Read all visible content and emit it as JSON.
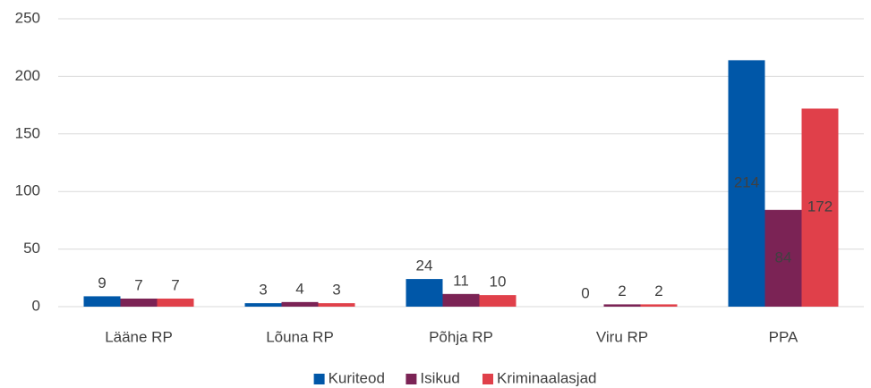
{
  "chart_data": {
    "type": "bar",
    "categories": [
      "Lääne RP",
      "Lõuna RP",
      "Põhja RP",
      "Viru RP",
      "PPA"
    ],
    "series": [
      {
        "name": "Kuriteod",
        "color": "#0057a8",
        "values": [
          9,
          3,
          24,
          0,
          214
        ]
      },
      {
        "name": "Isikud",
        "color": "#7b2355",
        "values": [
          7,
          4,
          11,
          2,
          84
        ]
      },
      {
        "name": "Kriminaalasjad",
        "color": "#e0404a",
        "values": [
          7,
          3,
          10,
          2,
          172
        ]
      }
    ],
    "ylim": [
      0,
      250
    ],
    "yticks": [
      0,
      50,
      100,
      150,
      200,
      250
    ],
    "grid": true,
    "legend": "bottom"
  }
}
